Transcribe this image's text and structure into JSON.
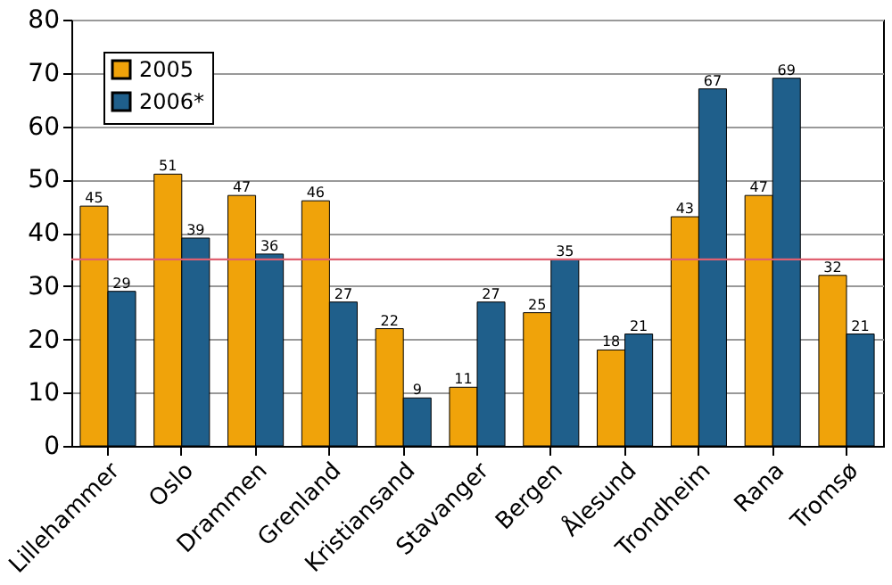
{
  "chart_data": {
    "type": "bar",
    "categories": [
      "Lillehammer",
      "Oslo",
      "Drammen",
      "Grenland",
      "Kristiansand",
      "Stavanger",
      "Bergen",
      "Ålesund",
      "Trondheim",
      "Rana",
      "Tromsø"
    ],
    "series": [
      {
        "name": "2005",
        "color": "#f0a30a",
        "values": [
          45,
          51,
          47,
          46,
          22,
          11,
          25,
          18,
          43,
          47,
          32
        ]
      },
      {
        "name": "2006*",
        "color": "#1f5f8b",
        "values": [
          29,
          39,
          36,
          27,
          9,
          27,
          35,
          21,
          67,
          69,
          21
        ]
      }
    ],
    "ylim": [
      0,
      80
    ],
    "yticks": [
      0,
      10,
      20,
      30,
      40,
      50,
      60,
      70,
      80
    ],
    "grid": "y",
    "legend": "top left",
    "data_labels": true,
    "ref_lines": [
      {
        "axis": "y",
        "value": 35,
        "color": "#e06070"
      }
    ]
  }
}
